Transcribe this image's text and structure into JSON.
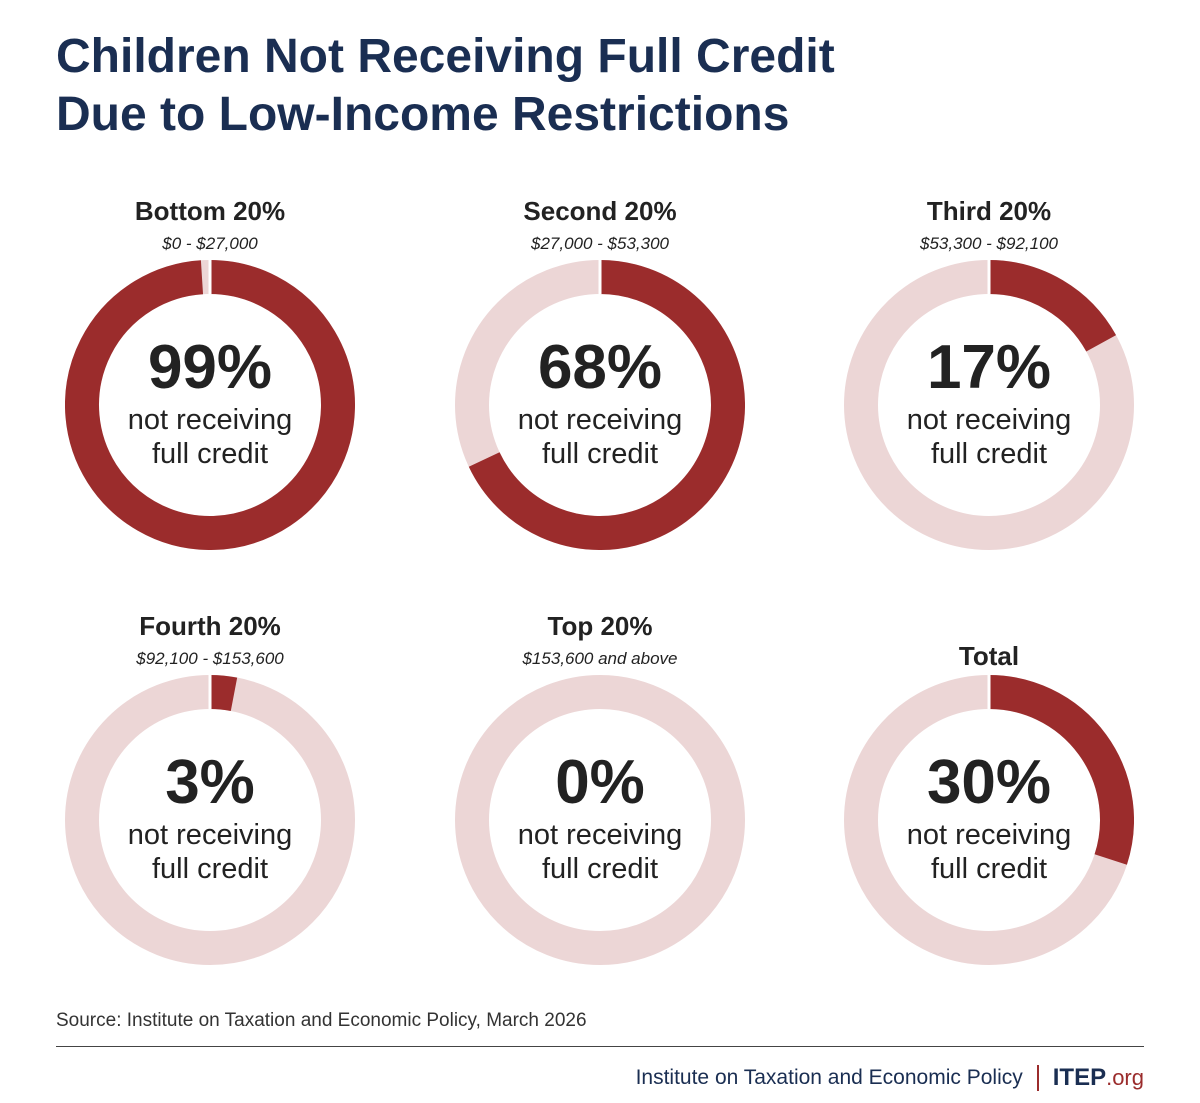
{
  "title": {
    "line1": "Children Not Receiving Full Credit",
    "line2": "Due to Low-Income Restrictions"
  },
  "colors": {
    "filled": "#9b2c2c",
    "track": "#ecd6d6",
    "title": "#1a2e52",
    "text": "#222222"
  },
  "chart_data": {
    "type": "pie",
    "title": "Children Not Receiving Full Credit Due to Low-Income Restrictions",
    "unit": "%",
    "items": [
      {
        "category": "Bottom 20%",
        "range": "$0 - $27,000",
        "value": 99,
        "label": "99%",
        "description_line1": "not receiving",
        "description_line2": "full credit"
      },
      {
        "category": "Second 20%",
        "range": "$27,000 - $53,300",
        "value": 68,
        "label": "68%",
        "description_line1": "not receiving",
        "description_line2": "full credit"
      },
      {
        "category": "Third 20%",
        "range": "$53,300 - $92,100",
        "value": 17,
        "label": "17%",
        "description_line1": "not receiving",
        "description_line2": "full credit"
      },
      {
        "category": "Fourth 20%",
        "range": "$92,100 - $153,600",
        "value": 3,
        "label": "3%",
        "description_line1": "not receiving",
        "description_line2": "full credit"
      },
      {
        "category": "Top 20%",
        "range": "$153,600 and above",
        "value": 0,
        "label": "0%",
        "description_line1": "not receiving",
        "description_line2": "full credit"
      },
      {
        "category": "Total",
        "range": "",
        "value": 30,
        "label": "30%",
        "description_line1": "not receiving",
        "description_line2": "full credit"
      }
    ]
  },
  "source": "Source: Institute on Taxation and Economic Policy, March 2026",
  "footer": {
    "org_name": "Institute on Taxation and Economic Policy",
    "brand": "ITEP",
    "brand_suffix": ".org"
  }
}
